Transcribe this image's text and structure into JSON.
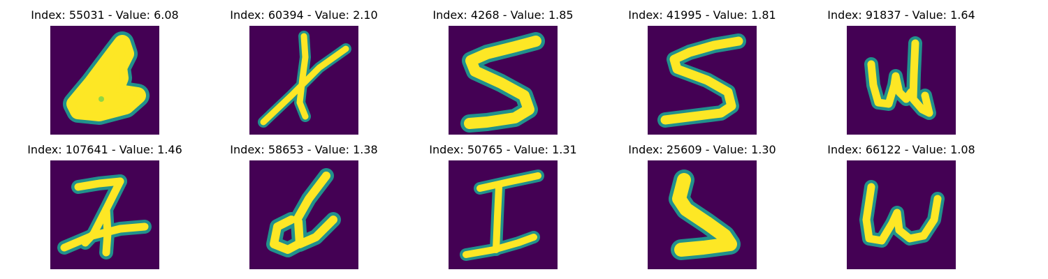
{
  "colors": {
    "background": "#440154",
    "mid": "#21918c",
    "high": "#fde725"
  },
  "images": [
    {
      "title": "Index: 55031 - Value: 6.08"
    },
    {
      "title": "Index: 60394 - Value: 2.10"
    },
    {
      "title": "Index: 4268 - Value: 1.85"
    },
    {
      "title": "Index: 41995 - Value: 1.81"
    },
    {
      "title": "Index: 91837 - Value: 1.64"
    },
    {
      "title": "Index: 107641 - Value: 1.46"
    },
    {
      "title": "Index: 58653 - Value: 1.38"
    },
    {
      "title": "Index: 50765 - Value: 1.31"
    },
    {
      "title": "Index: 25609 - Value: 1.30"
    },
    {
      "title": "Index: 66122 - Value: 1.08"
    }
  ]
}
